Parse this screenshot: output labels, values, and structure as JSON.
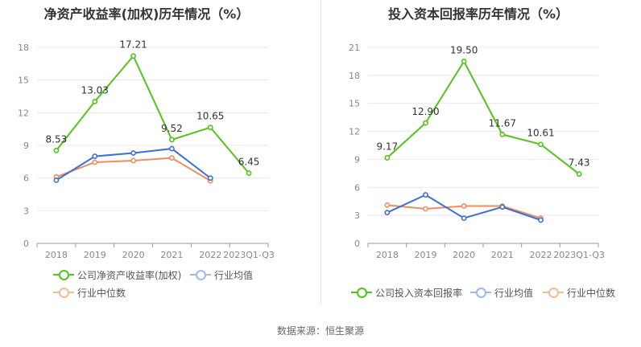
{
  "source_text": "数据来源：恒生聚源",
  "chart_data": [
    {
      "type": "line",
      "title": "净资产收益率(加权)历年情况（%）",
      "categories": [
        "2018",
        "2019",
        "2020",
        "2021",
        "2022",
        "2023Q1-Q3"
      ],
      "ylim": [
        0,
        18
      ],
      "yticks": [
        "0",
        "3",
        "6",
        "9",
        "12",
        "15",
        "18"
      ],
      "ytick_values": [
        0,
        3,
        6,
        9,
        12,
        15,
        18
      ],
      "grid": true,
      "legend_position": "bottom",
      "series": [
        {
          "name": "公司净资产收益率(加权)",
          "color": "#52c41a",
          "values": [
            8.53,
            13.03,
            17.21,
            9.52,
            10.65,
            6.45
          ],
          "labels": [
            "8.53",
            "13.03",
            "17.21",
            "9.52",
            "10.65",
            "6.45"
          ],
          "show_labels": true
        },
        {
          "name": "行业均值",
          "color": "#3d6fdb",
          "values": [
            5.8,
            8.0,
            8.3,
            8.7,
            6.0,
            null
          ],
          "show_labels": false
        },
        {
          "name": "行业中位数",
          "color": "#f08c5a",
          "values": [
            6.1,
            7.45,
            7.6,
            7.85,
            5.75,
            null
          ],
          "show_labels": false
        }
      ]
    },
    {
      "type": "line",
      "title": "投入资本回报率历年情况（%）",
      "categories": [
        "2018",
        "2019",
        "2020",
        "2021",
        "2022",
        "2023Q1-Q3"
      ],
      "ylim": [
        0,
        21
      ],
      "yticks": [
        "0",
        "3",
        "6",
        "9",
        "12",
        "15",
        "18",
        "21"
      ],
      "ytick_values": [
        0,
        3,
        6,
        9,
        12,
        15,
        18,
        21
      ],
      "grid": true,
      "legend_position": "bottom",
      "series": [
        {
          "name": "公司投入资本回报率",
          "color": "#52c41a",
          "values": [
            9.17,
            12.9,
            19.5,
            11.67,
            10.61,
            7.43
          ],
          "labels": [
            "9.17",
            "12.90",
            "19.50",
            "11.67",
            "10.61",
            "7.43"
          ],
          "show_labels": true
        },
        {
          "name": "行业均值",
          "color": "#3d6fdb",
          "values": [
            3.3,
            5.2,
            2.7,
            3.9,
            2.5,
            null
          ],
          "show_labels": false
        },
        {
          "name": "行业中位数",
          "color": "#f08c5a",
          "values": [
            4.1,
            3.7,
            4.0,
            4.0,
            2.7,
            null
          ],
          "show_labels": false
        }
      ]
    }
  ]
}
